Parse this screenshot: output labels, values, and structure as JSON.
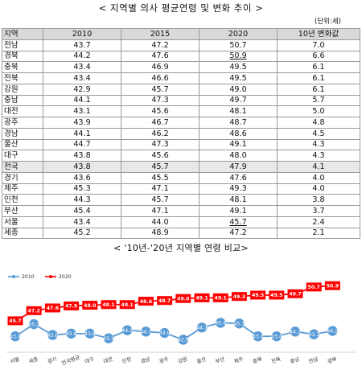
{
  "title_table": "< 지역별 의사 평균연령 및 변화 추이 >",
  "unit": "(단위:세)",
  "table": {
    "headers": [
      "지역",
      "2010",
      "2015",
      "2020",
      "10년 변화값"
    ],
    "rows": [
      [
        "전남",
        "43.7",
        "47.2",
        "50.7",
        "7.0"
      ],
      [
        "경북",
        "44.2",
        "47.6",
        "50.9",
        "6.6"
      ],
      [
        "충북",
        "43.4",
        "46.9",
        "49.5",
        "6.1"
      ],
      [
        "전북",
        "43.4",
        "46.6",
        "49.5",
        "6.1"
      ],
      [
        "강원",
        "42.9",
        "45.7",
        "49.0",
        "6.1"
      ],
      [
        "충남",
        "44.1",
        "47.3",
        "49.7",
        "5.7"
      ],
      [
        "대전",
        "43.1",
        "45.6",
        "48.1",
        "5.0"
      ],
      [
        "광주",
        "43.9",
        "46.7",
        "48.7",
        "4.8"
      ],
      [
        "경남",
        "44.1",
        "46.2",
        "48.6",
        "4.5"
      ],
      [
        "울산",
        "44.7",
        "47.3",
        "49.1",
        "4.3"
      ],
      [
        "대구",
        "43.8",
        "45.6",
        "48.0",
        "4.3"
      ],
      [
        "전국",
        "43.8",
        "45.7",
        "47.9",
        "4.1"
      ],
      [
        "경기",
        "43.6",
        "45.5",
        "47.6",
        "4.0"
      ],
      [
        "제주",
        "45.3",
        "47.1",
        "49.3",
        "4.0"
      ],
      [
        "인천",
        "44.3",
        "45.7",
        "48.1",
        "3.8"
      ],
      [
        "부산",
        "45.4",
        "47.1",
        "49.1",
        "3.7"
      ],
      [
        "서울",
        "43.4",
        "44.0",
        "45.7",
        "2.4"
      ],
      [
        "세종",
        "45.2",
        "48.9",
        "47.2",
        "2.1"
      ]
    ]
  },
  "title_chart": "< '10년-'20년 지역별 연령 비교>",
  "colors": {
    "series2010": "#5b9bd5",
    "series2020": "#ff0000"
  },
  "chart_data": {
    "type": "line",
    "title": "< '10년-'20년 지역별 연령 비교>",
    "categories": [
      "서울",
      "세종",
      "경기",
      "전국평균",
      "대구",
      "대전",
      "인천",
      "경남",
      "광주",
      "강원",
      "울산",
      "부산",
      "제주",
      "충북",
      "전북",
      "충남",
      "전남",
      "경북"
    ],
    "series": [
      {
        "name": "2010",
        "values": [
          43.4,
          45.2,
          43.6,
          43.8,
          43.8,
          43.1,
          44.3,
          44.1,
          43.9,
          42.9,
          44.7,
          45.4,
          45.3,
          43.4,
          43.4,
          44.1,
          43.7,
          44.2
        ]
      },
      {
        "name": "2020",
        "values": [
          45.7,
          47.2,
          47.6,
          47.9,
          48.0,
          48.1,
          48.1,
          48.6,
          48.7,
          49.0,
          49.1,
          49.1,
          49.3,
          49.5,
          49.5,
          49.7,
          50.7,
          50.9
        ]
      }
    ],
    "ylim": [
      42,
      52
    ],
    "legend": "top-left",
    "grid": false
  }
}
